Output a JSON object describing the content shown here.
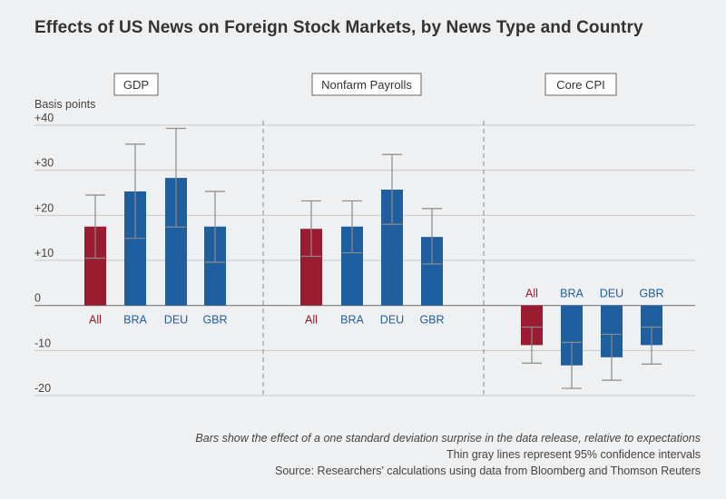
{
  "title": "Effects of US News on Foreign Stock Markets, by News Type and Country",
  "footnotes": {
    "line1": "Bars show the effect of a one standard deviation surprise in the data release, relative to expectations",
    "line2": "Thin gray lines represent 95% confidence intervals",
    "line3": "Source: Researchers’ calculations using data from Bloomberg and Thomson Reuters"
  },
  "colors": {
    "all": "#9b1b30",
    "country": "#1f5fa0",
    "error": "#8a8a8a",
    "grid": "#c8c8c8",
    "background": "#eef0f2"
  },
  "chart_data": {
    "type": "bar",
    "ylabel": "Basis points",
    "ylim": [
      -20,
      40
    ],
    "yticks": [
      {
        "value": 40,
        "label": "+40"
      },
      {
        "value": 30,
        "label": "+30"
      },
      {
        "value": 20,
        "label": "+20"
      },
      {
        "value": 10,
        "label": "+10"
      },
      {
        "value": 0,
        "label": "0"
      },
      {
        "value": -10,
        "label": "-10"
      },
      {
        "value": -20,
        "label": "-20"
      }
    ],
    "grid": true,
    "panels": [
      {
        "name": "GDP",
        "categories": [
          "All",
          "BRA",
          "DEU",
          "GBR"
        ],
        "values": [
          17.5,
          25.3,
          28.3,
          17.5
        ],
        "ci_low": [
          10.5,
          14.9,
          17.4,
          9.6
        ],
        "ci_high": [
          24.5,
          35.8,
          39.3,
          25.3
        ]
      },
      {
        "name": "Nonfarm Payrolls",
        "categories": [
          "All",
          "BRA",
          "DEU",
          "GBR"
        ],
        "values": [
          17.0,
          17.5,
          25.7,
          15.2
        ],
        "ci_low": [
          10.9,
          11.7,
          18.0,
          9.2
        ],
        "ci_high": [
          23.2,
          23.2,
          33.5,
          21.5
        ]
      },
      {
        "name": "Core CPI",
        "categories": [
          "All",
          "BRA",
          "DEU",
          "GBR"
        ],
        "values": [
          -8.8,
          -13.3,
          -11.5,
          -8.8
        ],
        "ci_low": [
          -12.8,
          -18.4,
          -16.6,
          -13.0
        ],
        "ci_high": [
          -4.8,
          -8.2,
          -6.4,
          -4.8
        ]
      }
    ]
  }
}
